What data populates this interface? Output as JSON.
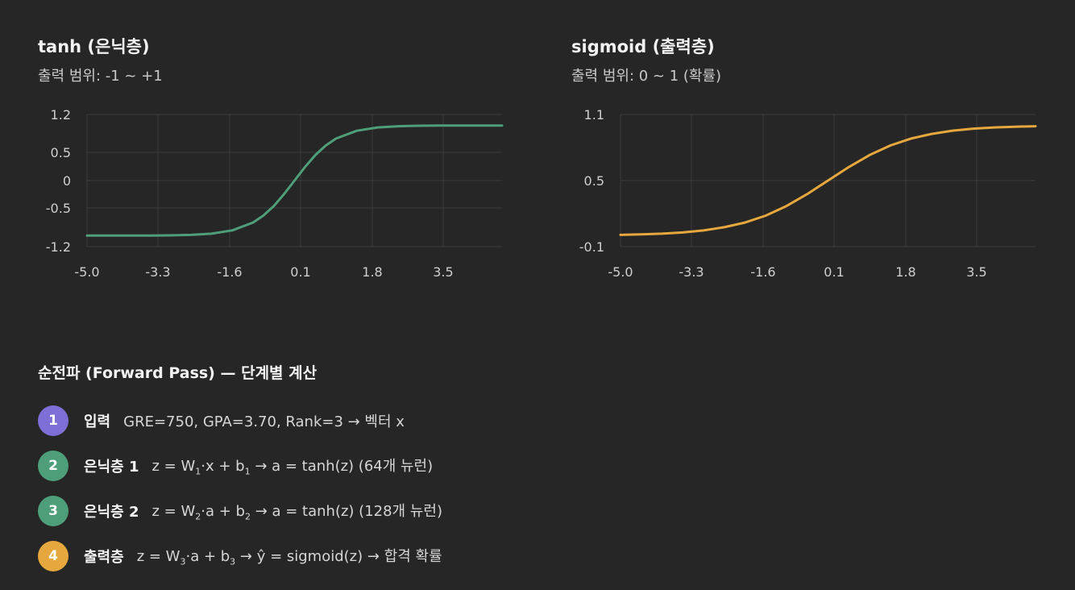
{
  "charts": [
    {
      "title": "tanh (은닉층)",
      "subtitle": "출력 범위: -1 ~ +1",
      "color": "#4e9f79"
    },
    {
      "title": "sigmoid (출력층)",
      "subtitle": "출력 범위: 0 ~ 1 (확률)",
      "color": "#e6a83e"
    }
  ],
  "chart_data": [
    {
      "type": "line",
      "function": "tanh",
      "title": "tanh (은닉층)",
      "subtitle": "출력 범위: -1 ~ +1",
      "x_ticks": [
        "-5.0",
        "-3.3",
        "-1.6",
        "0.1",
        "1.8",
        "3.5"
      ],
      "y_ticks": [
        "1.2",
        "0.5",
        "0",
        "-0.5",
        "-1.2"
      ],
      "xlim": [
        -5.0,
        5.0
      ],
      "ylim": [
        -1.2,
        1.2
      ],
      "grid": true,
      "series": [
        {
          "color": "#4e9f79",
          "x": [
            -5.0,
            -4.5,
            -4.0,
            -3.5,
            -3.0,
            -2.5,
            -2.0,
            -1.5,
            -1.0,
            -0.75,
            -0.5,
            -0.25,
            0.0,
            0.25,
            0.5,
            0.75,
            1.0,
            1.5,
            2.0,
            2.5,
            3.0,
            3.5,
            4.0,
            4.5,
            5.0
          ],
          "y": [
            -1.0,
            -1.0,
            -0.999,
            -0.998,
            -0.995,
            -0.987,
            -0.964,
            -0.905,
            -0.762,
            -0.635,
            -0.462,
            -0.245,
            0.0,
            0.245,
            0.462,
            0.635,
            0.762,
            0.905,
            0.964,
            0.987,
            0.995,
            0.998,
            0.999,
            1.0,
            1.0
          ]
        }
      ]
    },
    {
      "type": "line",
      "function": "sigmoid",
      "title": "sigmoid (출력층)",
      "subtitle": "출력 범위: 0 ~ 1 (확률)",
      "x_ticks": [
        "-5.0",
        "-3.3",
        "-1.6",
        "0.1",
        "1.8",
        "3.5"
      ],
      "y_ticks": [
        "1.1",
        "0.5",
        "-0.1"
      ],
      "xlim": [
        -5.0,
        5.0
      ],
      "ylim": [
        -0.1,
        1.1
      ],
      "grid": true,
      "series": [
        {
          "color": "#e6a83e",
          "x": [
            -5.0,
            -4.5,
            -4.0,
            -3.5,
            -3.0,
            -2.5,
            -2.0,
            -1.5,
            -1.0,
            -0.5,
            0.0,
            0.5,
            1.0,
            1.5,
            2.0,
            2.5,
            3.0,
            3.5,
            4.0,
            4.5,
            5.0
          ],
          "y": [
            0.007,
            0.011,
            0.018,
            0.029,
            0.047,
            0.076,
            0.119,
            0.182,
            0.269,
            0.378,
            0.5,
            0.622,
            0.731,
            0.818,
            0.881,
            0.924,
            0.953,
            0.971,
            0.982,
            0.989,
            0.993
          ]
        }
      ]
    }
  ],
  "steps": {
    "title": "순전파 (Forward Pass) — 단계별 계산",
    "items": [
      {
        "num": "1",
        "label": "입력",
        "color": "#7e6fd6",
        "parts": [
          "GRE=750, GPA=3.70, Rank=3 → 벡터 x"
        ]
      },
      {
        "num": "2",
        "label": "은닉층 1",
        "color": "#4e9f79",
        "parts": [
          "z = W",
          "1",
          "·x + b",
          "1",
          " → a = tanh(z) (64개 뉴런)"
        ]
      },
      {
        "num": "3",
        "label": "은닉층 2",
        "color": "#4e9f79",
        "parts": [
          "z = W",
          "2",
          "·a + b",
          "2",
          " → a = tanh(z) (128개 뉴런)"
        ]
      },
      {
        "num": "4",
        "label": "출력층",
        "color": "#e6a83e",
        "parts": [
          "z = W",
          "3",
          "·a + b",
          "3",
          " → ŷ = sigmoid(z) → 합격 확률"
        ]
      }
    ]
  }
}
